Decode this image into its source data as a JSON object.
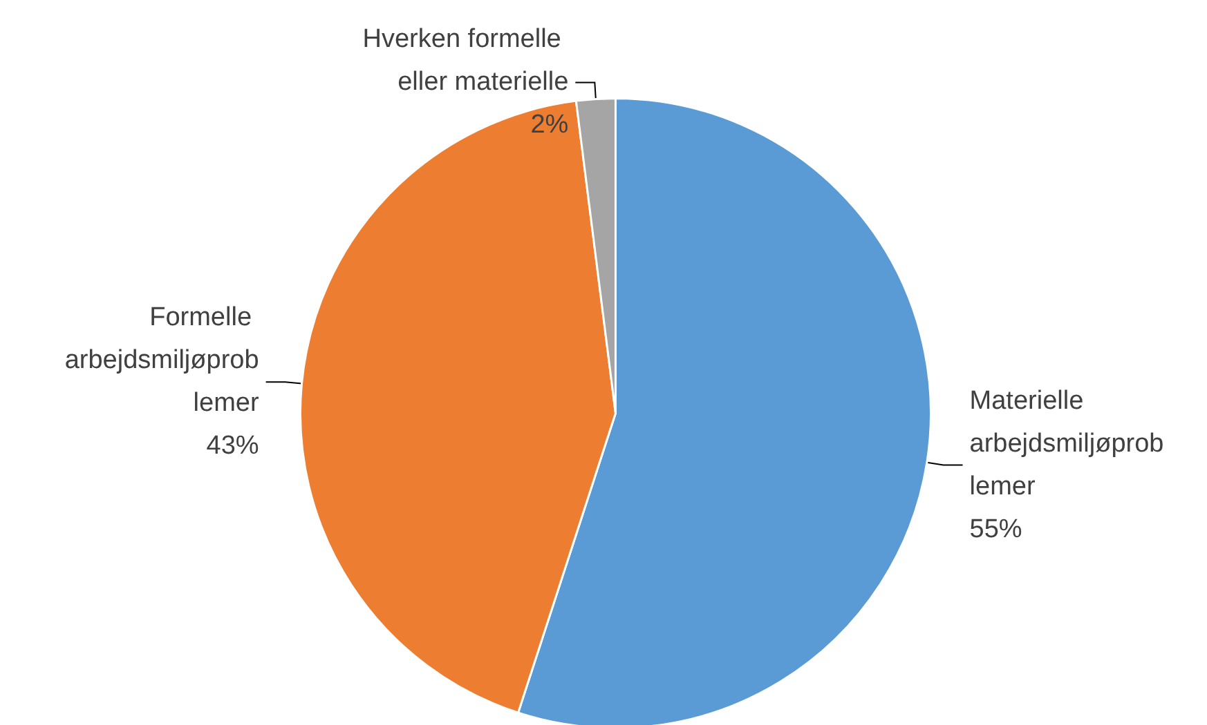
{
  "chart_data": {
    "type": "pie",
    "categories": [
      "Materielle arbejdsmiljøproblemer",
      "Formelle arbejdsmiljøproblemer",
      "Hverken formelle eller materielle"
    ],
    "values": [
      55,
      43,
      2
    ],
    "colors": [
      "#5b9bd5",
      "#ed7d31",
      "#a5a5a5"
    ],
    "value_labels": [
      "55%",
      "43%",
      "2%"
    ],
    "legend": false
  }
}
